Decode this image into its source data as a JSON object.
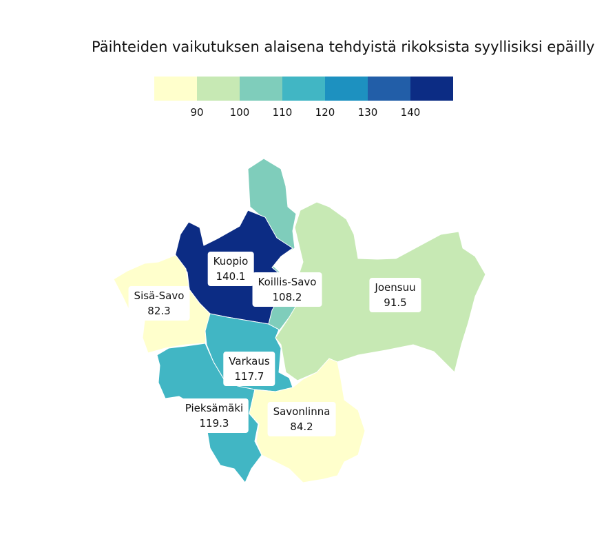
{
  "title": "Päihteiden vaikutuksen alaisena tehdyistä rikoksista syyllisiksi epäillyt",
  "legend": {
    "colors": [
      "#ffffcc",
      "#c7e9b4",
      "#7fcdbb",
      "#41b6c4",
      "#1d91c0",
      "#225ea8",
      "#0c2c84"
    ],
    "ticks": [
      "90",
      "100",
      "110",
      "120",
      "130",
      "140"
    ]
  },
  "regions": [
    {
      "name": "Kuopio",
      "value": "140.1",
      "color": "#0c2c84"
    },
    {
      "name": "Koillis-Savo",
      "value": "108.2",
      "color": "#7fcdbb"
    },
    {
      "name": "Sisä-Savo",
      "value": "82.3",
      "color": "#ffffcc"
    },
    {
      "name": "Joensuu",
      "value": "91.5",
      "color": "#c7e9b4"
    },
    {
      "name": "Varkaus",
      "value": "117.7",
      "color": "#41b6c4"
    },
    {
      "name": "Pieksämäki",
      "value": "119.3",
      "color": "#41b6c4"
    },
    {
      "name": "Savonlinna",
      "value": "84.2",
      "color": "#ffffcc"
    }
  ]
}
